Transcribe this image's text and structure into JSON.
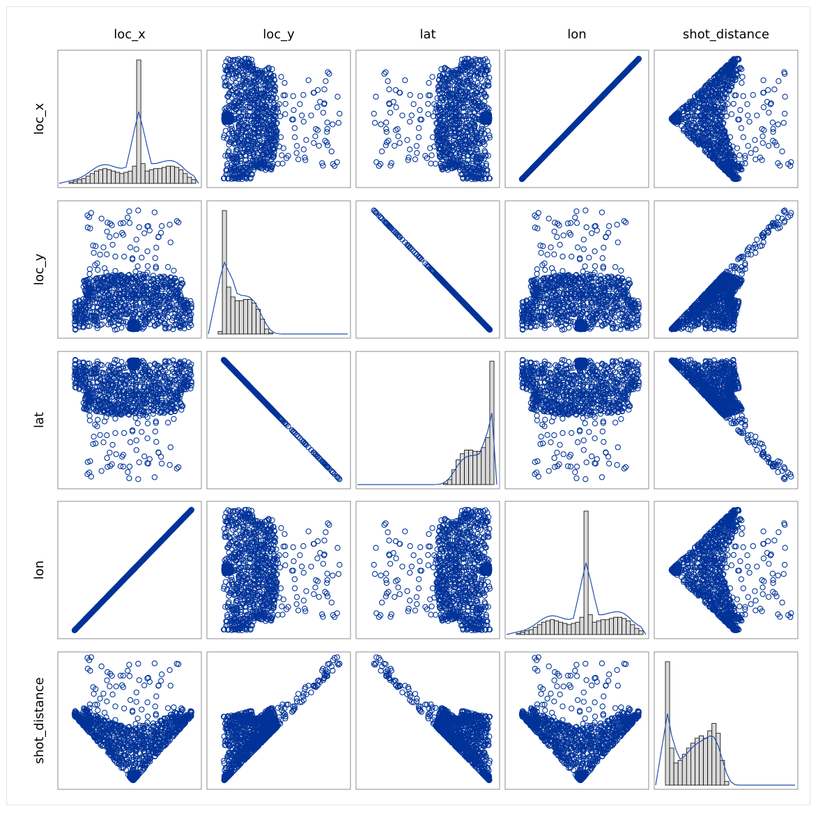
{
  "variables": [
    "loc_x",
    "loc_y",
    "lat",
    "lon",
    "shot_distance"
  ],
  "colors": {
    "point": "#003399",
    "density": "#1f4db5",
    "bar_fill": "#d9d9d9",
    "bar_stroke": "#000000",
    "panel_border": "#8c8c8c"
  },
  "chart_data": {
    "type": "scatter",
    "subtype": "scatterplot-matrix",
    "title": "",
    "diagonal": "histogram with density curve",
    "marker": "open circle",
    "variables": [
      "loc_x",
      "loc_y",
      "lat",
      "lon",
      "shot_distance"
    ],
    "relationships": {
      "loc_x|lon": "perfect positive linear",
      "loc_y|lat": "perfect negative linear",
      "loc_y|shot_distance": "strong positive, curved at low values",
      "lat|shot_distance": "strong negative, curved at low values",
      "loc_x|loc_y": "dense band with sparse outliers at high loc_y",
      "loc_x|shot_distance": "V-shaped cone",
      "lon|shot_distance": "V-shaped cone"
    },
    "histograms": {
      "loc_x": [
        1,
        2,
        3,
        4,
        6,
        8,
        10,
        11,
        12,
        11,
        10,
        9,
        8,
        9,
        10,
        14,
        100,
        16,
        10,
        11,
        12,
        12,
        13,
        14,
        14,
        13,
        11,
        8,
        5,
        3
      ],
      "loc_y": [
        2,
        100,
        38,
        30,
        27,
        27,
        28,
        28,
        25,
        20,
        12,
        4,
        1,
        0,
        0,
        0,
        0,
        0,
        0,
        0,
        0,
        0,
        0,
        0,
        0,
        0,
        0,
        0,
        0,
        0
      ],
      "lat": [
        0,
        0,
        0,
        0,
        0,
        0,
        0,
        0,
        0,
        0,
        0,
        0,
        0,
        0,
        0,
        0,
        0,
        0,
        1,
        4,
        12,
        20,
        25,
        28,
        28,
        27,
        27,
        30,
        38,
        100
      ],
      "lon": [
        1,
        2,
        3,
        4,
        6,
        8,
        10,
        11,
        12,
        11,
        10,
        9,
        8,
        9,
        10,
        14,
        100,
        16,
        10,
        11,
        12,
        12,
        13,
        14,
        14,
        13,
        11,
        8,
        5,
        3
      ],
      "shot_distance": [
        100,
        30,
        18,
        20,
        25,
        30,
        34,
        38,
        40,
        38,
        44,
        50,
        42,
        20,
        3,
        0,
        0,
        0,
        0,
        0,
        0,
        0,
        0,
        0,
        0,
        0,
        0,
        0,
        0,
        0
      ]
    },
    "grid": false,
    "legend": "none"
  }
}
